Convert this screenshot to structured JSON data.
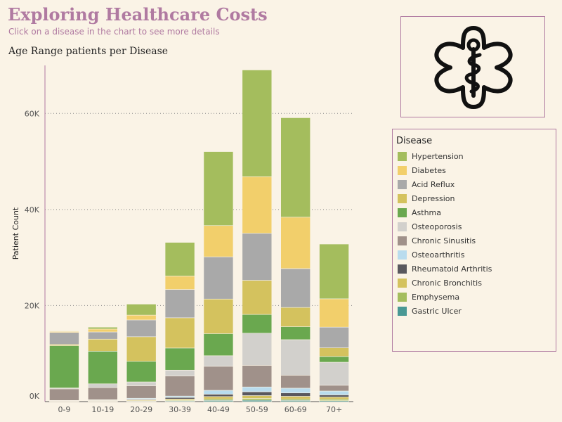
{
  "header": {
    "title": "Exploring Healthcare Costs",
    "subtitle": "Click on a disease in the chart to see more details"
  },
  "logo": {
    "icon": "medical-caduceus-star-icon"
  },
  "legend": {
    "title": "Disease"
  },
  "chart_data": {
    "type": "bar",
    "stacked": true,
    "title": "Age Range patients per Disease",
    "xlabel": "",
    "ylabel": "Patient Count",
    "ylim": [
      0,
      70000
    ],
    "yticks": [
      0,
      20000,
      40000,
      60000
    ],
    "ytick_labels": [
      "0K",
      "20K",
      "40K",
      "60K"
    ],
    "grid": true,
    "legend_position": "right",
    "categories": [
      "0-9",
      "10-19",
      "20-29",
      "30-39",
      "40-49",
      "50-59",
      "60-69",
      "70+"
    ],
    "series": [
      {
        "name": "Gastric Ulcer",
        "color": "#499894",
        "values": [
          50,
          50,
          100,
          150,
          250,
          300,
          250,
          200
        ]
      },
      {
        "name": "Emphysema",
        "color": "#a4bd5d",
        "values": [
          50,
          50,
          100,
          150,
          300,
          350,
          300,
          300
        ]
      },
      {
        "name": "Chronic Bronchitis",
        "color": "#d4c25e",
        "values": [
          50,
          100,
          150,
          250,
          500,
          600,
          550,
          450
        ]
      },
      {
        "name": "Rheumatoid Arthritis",
        "color": "#59585e",
        "values": [
          50,
          100,
          150,
          300,
          500,
          800,
          700,
          450
        ]
      },
      {
        "name": "Osteoarthritis",
        "color": "#b9dcee",
        "values": [
          50,
          100,
          200,
          300,
          800,
          1000,
          1000,
          800
        ]
      },
      {
        "name": "Chronic Sinusitis",
        "color": "#a0918a",
        "values": [
          2400,
          2500,
          2600,
          4200,
          5000,
          4500,
          2700,
          1200
        ]
      },
      {
        "name": "Osteoporosis",
        "color": "#d2d0cc",
        "values": [
          200,
          800,
          800,
          1200,
          2200,
          6700,
          7400,
          4800
        ]
      },
      {
        "name": "Asthma",
        "color": "#6aa84f",
        "values": [
          8800,
          6800,
          4300,
          4600,
          4600,
          3900,
          2700,
          1200
        ]
      },
      {
        "name": "Depression",
        "color": "#d4c25e",
        "values": [
          250,
          2500,
          5100,
          6300,
          7200,
          7100,
          4000,
          1800
        ]
      },
      {
        "name": "Acid Reflux",
        "color": "#a9a9a9",
        "values": [
          2500,
          1500,
          3500,
          5900,
          8800,
          9800,
          8100,
          4300
        ]
      },
      {
        "name": "Diabetes",
        "color": "#f2cf6b",
        "values": [
          200,
          600,
          1000,
          2800,
          6500,
          11800,
          10700,
          5900
        ]
      },
      {
        "name": "Hypertension",
        "color": "#a4bd5d",
        "values": [
          100,
          400,
          2300,
          7000,
          15400,
          22200,
          20700,
          11400
        ]
      }
    ],
    "legend_order": [
      {
        "name": "Hypertension",
        "color": "#a4bd5d"
      },
      {
        "name": "Diabetes",
        "color": "#f2cf6b"
      },
      {
        "name": "Acid Reflux",
        "color": "#a9a9a9"
      },
      {
        "name": "Depression",
        "color": "#d4c25e"
      },
      {
        "name": "Asthma",
        "color": "#6aa84f"
      },
      {
        "name": "Osteoporosis",
        "color": "#d2d0cc"
      },
      {
        "name": "Chronic Sinusitis",
        "color": "#a0918a"
      },
      {
        "name": "Osteoarthritis",
        "color": "#b9dcee"
      },
      {
        "name": "Rheumatoid Arthritis",
        "color": "#59585e"
      },
      {
        "name": "Chronic Bronchitis",
        "color": "#d4c25e"
      },
      {
        "name": "Emphysema",
        "color": "#a4bd5d"
      },
      {
        "name": "Gastric Ulcer",
        "color": "#499894"
      }
    ]
  }
}
